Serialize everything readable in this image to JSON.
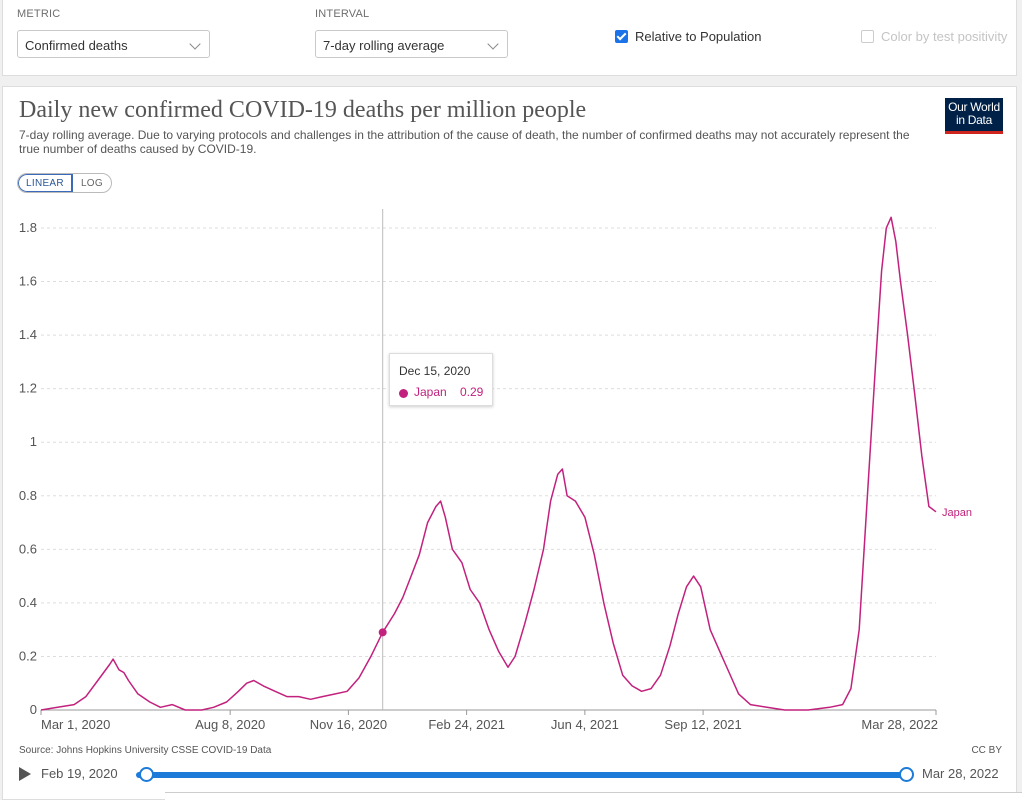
{
  "controls": {
    "metric_label": "METRIC",
    "metric_value": "Confirmed deaths",
    "interval_label": "INTERVAL",
    "interval_value": "7-day rolling average",
    "relative_population": "Relative to Population",
    "color_by_positivity": "Color by test positivity"
  },
  "header": {
    "title": "Daily new confirmed COVID-19 deaths per million people",
    "subtitle": "7-day rolling average. Due to varying protocols and challenges in the attribution of the cause of death, the number of confirmed deaths may not accurately represent the true number of deaths caused by COVID-19.",
    "logo_line1": "Our World",
    "logo_line2": "in Data"
  },
  "scale_toggle": {
    "linear": "LINEAR",
    "log": "LOG"
  },
  "tooltip": {
    "date": "Dec 15, 2020",
    "entity": "Japan",
    "value": "0.29"
  },
  "footer": {
    "source": "Source: Johns Hopkins University CSSE COVID-19 Data",
    "license": "CC BY",
    "timeline_start": "Feb 19, 2020",
    "timeline_end": "Mar 28, 2022"
  },
  "colors": {
    "series": "#c2217d",
    "accent": "#1c7bd9"
  },
  "chart_data": {
    "type": "line",
    "title": "Daily new confirmed COVID-19 deaths per million people",
    "xlabel": "",
    "ylabel": "",
    "x_range": [
      "2020-03-01",
      "2022-03-28"
    ],
    "ylim": [
      0,
      1.9
    ],
    "y_ticks": [
      0,
      0.2,
      0.4,
      0.6,
      0.8,
      1,
      1.2,
      1.4,
      1.6,
      1.8
    ],
    "y_tick_labels": [
      "0",
      "0.2",
      "0.4",
      "0.6",
      "0.8",
      "1",
      "1.2",
      "1.4",
      "1.6",
      "1.8"
    ],
    "x_ticks": [
      "2020-03-01",
      "2020-08-08",
      "2020-11-16",
      "2021-02-24",
      "2021-06-04",
      "2021-09-12",
      "2022-03-28"
    ],
    "x_tick_labels": [
      "Mar 1, 2020",
      "Aug 8, 2020",
      "Nov 16, 2020",
      "Feb 24, 2021",
      "Jun 4, 2021",
      "Sep 12, 2021",
      "Mar 28, 2022"
    ],
    "grid": "horizontal dashed",
    "highlight": {
      "date": "2020-12-15",
      "value": 0.29
    },
    "series": [
      {
        "name": "Japan",
        "color": "#c2217d",
        "points": [
          [
            "2020-03-01",
            0.0
          ],
          [
            "2020-03-15",
            0.01
          ],
          [
            "2020-03-29",
            0.02
          ],
          [
            "2020-04-08",
            0.05
          ],
          [
            "2020-04-18",
            0.11
          ],
          [
            "2020-04-28",
            0.17
          ],
          [
            "2020-05-01",
            0.19
          ],
          [
            "2020-05-06",
            0.15
          ],
          [
            "2020-05-10",
            0.14
          ],
          [
            "2020-05-14",
            0.11
          ],
          [
            "2020-05-22",
            0.06
          ],
          [
            "2020-06-01",
            0.03
          ],
          [
            "2020-06-10",
            0.01
          ],
          [
            "2020-06-20",
            0.02
          ],
          [
            "2020-07-01",
            0.0
          ],
          [
            "2020-07-15",
            0.0
          ],
          [
            "2020-07-25",
            0.01
          ],
          [
            "2020-08-05",
            0.03
          ],
          [
            "2020-08-15",
            0.07
          ],
          [
            "2020-08-22",
            0.1
          ],
          [
            "2020-08-28",
            0.11
          ],
          [
            "2020-09-05",
            0.09
          ],
          [
            "2020-09-15",
            0.07
          ],
          [
            "2020-09-25",
            0.05
          ],
          [
            "2020-10-05",
            0.05
          ],
          [
            "2020-10-15",
            0.04
          ],
          [
            "2020-10-25",
            0.05
          ],
          [
            "2020-11-05",
            0.06
          ],
          [
            "2020-11-15",
            0.07
          ],
          [
            "2020-11-25",
            0.12
          ],
          [
            "2020-12-05",
            0.2
          ],
          [
            "2020-12-15",
            0.29
          ],
          [
            "2020-12-25",
            0.36
          ],
          [
            "2021-01-01",
            0.42
          ],
          [
            "2021-01-08",
            0.5
          ],
          [
            "2021-01-15",
            0.58
          ],
          [
            "2021-01-22",
            0.7
          ],
          [
            "2021-01-29",
            0.76
          ],
          [
            "2021-02-02",
            0.78
          ],
          [
            "2021-02-06",
            0.72
          ],
          [
            "2021-02-12",
            0.6
          ],
          [
            "2021-02-20",
            0.55
          ],
          [
            "2021-02-27",
            0.45
          ],
          [
            "2021-03-07",
            0.4
          ],
          [
            "2021-03-15",
            0.3
          ],
          [
            "2021-03-23",
            0.22
          ],
          [
            "2021-03-31",
            0.16
          ],
          [
            "2021-04-06",
            0.2
          ],
          [
            "2021-04-14",
            0.32
          ],
          [
            "2021-04-22",
            0.45
          ],
          [
            "2021-04-30",
            0.6
          ],
          [
            "2021-05-06",
            0.78
          ],
          [
            "2021-05-12",
            0.88
          ],
          [
            "2021-05-16",
            0.9
          ],
          [
            "2021-05-20",
            0.8
          ],
          [
            "2021-05-27",
            0.78
          ],
          [
            "2021-06-04",
            0.72
          ],
          [
            "2021-06-12",
            0.58
          ],
          [
            "2021-06-20",
            0.4
          ],
          [
            "2021-06-28",
            0.25
          ],
          [
            "2021-07-06",
            0.13
          ],
          [
            "2021-07-14",
            0.09
          ],
          [
            "2021-07-22",
            0.07
          ],
          [
            "2021-07-30",
            0.08
          ],
          [
            "2021-08-07",
            0.13
          ],
          [
            "2021-08-15",
            0.24
          ],
          [
            "2021-08-22",
            0.36
          ],
          [
            "2021-08-29",
            0.46
          ],
          [
            "2021-09-04",
            0.5
          ],
          [
            "2021-09-10",
            0.46
          ],
          [
            "2021-09-18",
            0.3
          ],
          [
            "2021-09-26",
            0.22
          ],
          [
            "2021-10-04",
            0.14
          ],
          [
            "2021-10-12",
            0.06
          ],
          [
            "2021-10-22",
            0.02
          ],
          [
            "2021-11-05",
            0.01
          ],
          [
            "2021-11-20",
            0.0
          ],
          [
            "2021-12-10",
            0.0
          ],
          [
            "2021-12-28",
            0.01
          ],
          [
            "2022-01-08",
            0.02
          ],
          [
            "2022-01-15",
            0.08
          ],
          [
            "2022-01-22",
            0.3
          ],
          [
            "2022-01-29",
            0.8
          ],
          [
            "2022-02-05",
            1.3
          ],
          [
            "2022-02-10",
            1.64
          ],
          [
            "2022-02-14",
            1.8
          ],
          [
            "2022-02-18",
            1.84
          ],
          [
            "2022-02-22",
            1.75
          ],
          [
            "2022-02-26",
            1.6
          ],
          [
            "2022-03-04",
            1.4
          ],
          [
            "2022-03-10",
            1.18
          ],
          [
            "2022-03-16",
            0.95
          ],
          [
            "2022-03-22",
            0.76
          ],
          [
            "2022-03-28",
            0.74
          ]
        ]
      }
    ]
  }
}
